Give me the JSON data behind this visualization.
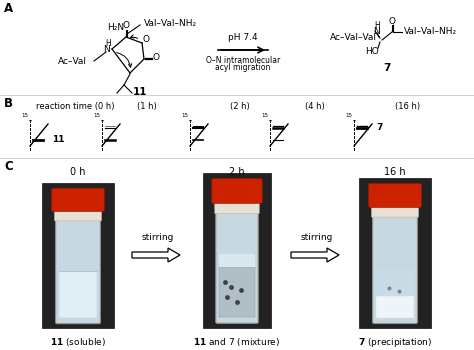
{
  "bg_color": "#ffffff",
  "text_color": "#000000",
  "panel_labels": [
    "A",
    "B",
    "C"
  ],
  "panel_A_reaction_arrow_text1": "pH 7.4",
  "panel_A_reaction_arrow_text2": "O–N intramolecular",
  "panel_A_reaction_arrow_text3": "acyl migration",
  "compound_11_label": "11",
  "compound_7_label": "7",
  "panel_B_time_labels": [
    "reaction time (0 h)",
    "(1 h)",
    "(2 h)",
    "(4 h)",
    "(16 h)"
  ],
  "panel_B_spot_label_11": "11",
  "panel_B_spot_label_7": "7",
  "panel_C_time_labels": [
    "0 h",
    "2 h",
    "16 h"
  ],
  "panel_C_captions": [
    "11 (soluble)",
    "11 and 7 (mixture)",
    "7 (precipitation)"
  ],
  "stirring_text": "stirring",
  "dark_bg": "#1e1e1e",
  "vial_glass": "#ccdde8",
  "vial_cap_red": "#cc2200",
  "vial_cap_white": "#e8e4dc",
  "vial_liquid_clear": "#ddeef8",
  "vial_liquid_turbid": "#9aacb8",
  "vial_liquid_precip": "#cce0ee"
}
